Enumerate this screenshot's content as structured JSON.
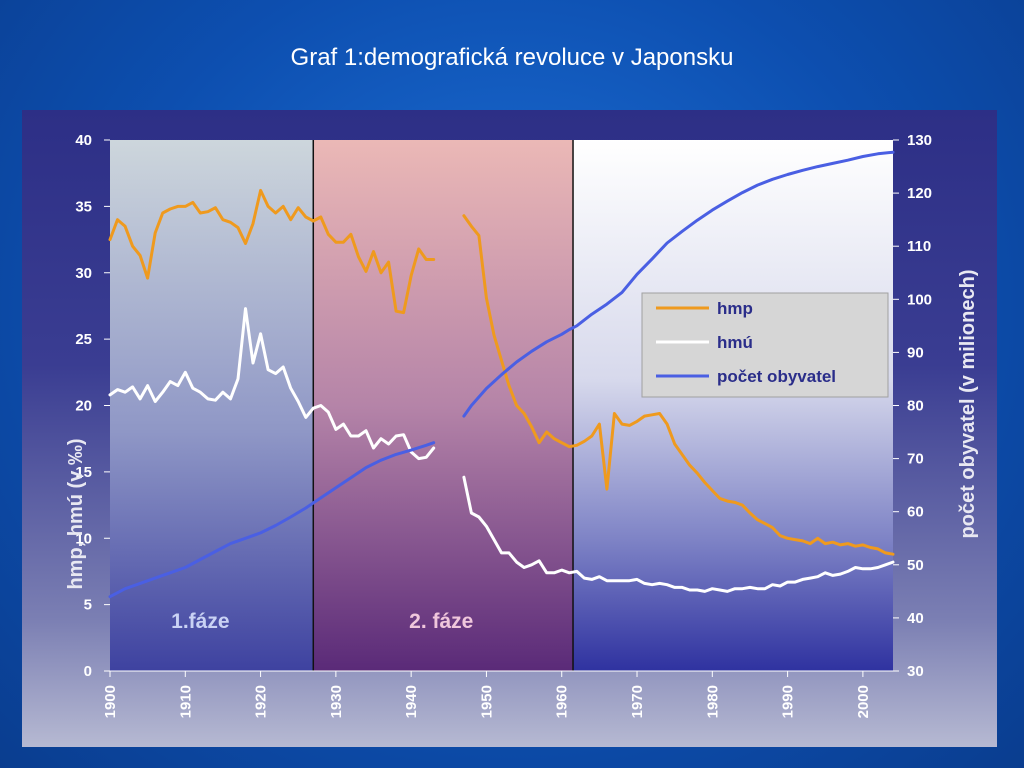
{
  "slide": {
    "title": "Graf 1:demografická revoluce v Japonsku"
  },
  "colors": {
    "hmp": "#ef9a1e",
    "hmu": "#ffffff",
    "population": "#4a5fe3",
    "phase1_bg": "#c9d3dc",
    "phase2_bg": "#e6b4b6",
    "phase3_bg": "#ffffff"
  },
  "chart_data": {
    "type": "line",
    "title": "",
    "xlabel": "",
    "ylabel": "hmp, hmú (v ‰)",
    "ylabel_right": "počet obyvatel (v milionech)",
    "xlim": [
      1900,
      2004
    ],
    "ylim": [
      0,
      40
    ],
    "ylim_right": [
      30,
      130
    ],
    "x_ticks": [
      "1900",
      "1910",
      "1920",
      "1930",
      "1940",
      "1950",
      "1960",
      "1970",
      "1980",
      "1990",
      "2000"
    ],
    "y_ticks": [
      "0",
      "5",
      "10",
      "15",
      "20",
      "25",
      "30",
      "35",
      "40"
    ],
    "y_ticks_right": [
      "30",
      "40",
      "50",
      "60",
      "70",
      "80",
      "90",
      "100",
      "110",
      "120",
      "130"
    ],
    "grid": false,
    "legend_position": "right",
    "phase_dividers": [
      1927,
      1961.5
    ],
    "phases": [
      {
        "label": "1.fáze",
        "x_center": 1912
      },
      {
        "label": "2. fáze",
        "x_center": 1944
      }
    ],
    "series": [
      {
        "name": "hmp",
        "axis": "left",
        "segments": [
          {
            "x": [
              1900,
              1901,
              1902,
              1903,
              1904,
              1905,
              1906,
              1907,
              1908,
              1909,
              1910,
              1911,
              1912,
              1913,
              1914,
              1915,
              1916,
              1917,
              1918,
              1919,
              1920,
              1921,
              1922,
              1923,
              1924,
              1925,
              1926,
              1927,
              1928,
              1929,
              1930,
              1931,
              1932,
              1933,
              1934,
              1935,
              1936,
              1937,
              1938,
              1939,
              1940,
              1941,
              1942,
              1943
            ],
            "y": [
              32.5,
              34,
              33.5,
              32,
              31.3,
              29.6,
              33,
              34.5,
              34.8,
              35,
              35,
              35.3,
              34.5,
              34.6,
              34.9,
              34,
              33.8,
              33.4,
              32.2,
              33.7,
              36.2,
              35,
              34.5,
              35,
              34,
              34.9,
              34.2,
              33.9,
              34.2,
              32.9,
              32.3,
              32.3,
              32.9,
              31.2,
              30.1,
              31.6,
              30,
              30.8,
              27.1,
              27,
              29.8,
              31.8,
              31.0,
              31.0
            ]
          },
          {
            "x": [
              1947,
              1948,
              1949,
              1950,
              1951,
              1952,
              1953,
              1954,
              1955,
              1956,
              1957,
              1958,
              1959,
              1960,
              1961,
              1962,
              1963,
              1964,
              1965,
              1966,
              1967,
              1968,
              1969,
              1970,
              1971,
              1972,
              1973,
              1974,
              1975,
              1976,
              1977,
              1978,
              1979,
              1980,
              1981,
              1982,
              1983,
              1984,
              1985,
              1986,
              1987,
              1988,
              1989,
              1990,
              1991,
              1992,
              1993,
              1994,
              1995,
              1996,
              1997,
              1998,
              1999,
              2000,
              2001,
              2002,
              2003,
              2004
            ],
            "y": [
              34.3,
              33.5,
              32.8,
              28.1,
              25.3,
              23.4,
              21.5,
              20,
              19.4,
              18.4,
              17.2,
              18,
              17.5,
              17.2,
              16.9,
              17.0,
              17.3,
              17.7,
              18.6,
              13.7,
              19.4,
              18.6,
              18.5,
              18.8,
              19.2,
              19.3,
              19.4,
              18.6,
              17.1,
              16.3,
              15.5,
              14.9,
              14.2,
              13.6,
              13.0,
              12.8,
              12.7,
              12.5,
              11.9,
              11.4,
              11.1,
              10.8,
              10.2,
              10.0,
              9.9,
              9.8,
              9.6,
              10.0,
              9.6,
              9.7,
              9.5,
              9.6,
              9.4,
              9.5,
              9.3,
              9.2,
              8.9,
              8.8
            ]
          }
        ]
      },
      {
        "name": "hmú",
        "axis": "left",
        "segments": [
          {
            "x": [
              1900,
              1901,
              1902,
              1903,
              1904,
              1905,
              1906,
              1907,
              1908,
              1909,
              1910,
              1911,
              1912,
              1913,
              1914,
              1915,
              1916,
              1917,
              1918,
              1919,
              1920,
              1921,
              1922,
              1923,
              1924,
              1925,
              1926,
              1927,
              1928,
              1929,
              1930,
              1931,
              1932,
              1933,
              1934,
              1935,
              1936,
              1937,
              1938,
              1939,
              1940,
              1941,
              1942,
              1943
            ],
            "y": [
              20.8,
              21.2,
              21,
              21.4,
              20.5,
              21.5,
              20.3,
              21,
              21.8,
              21.5,
              22.5,
              21.3,
              21,
              20.5,
              20.4,
              21,
              20.5,
              22,
              27.3,
              23.2,
              25.4,
              22.7,
              22.4,
              22.9,
              21.3,
              20.3,
              19.1,
              19.8,
              20,
              19.5,
              18.2,
              18.6,
              17.7,
              17.7,
              18.1,
              16.8,
              17.5,
              17.1,
              17.7,
              17.8,
              16.5,
              16,
              16.1,
              16.8
            ]
          },
          {
            "x": [
              1947,
              1948,
              1949,
              1950,
              1951,
              1952,
              1953,
              1954,
              1955,
              1956,
              1957,
              1958,
              1959,
              1960,
              1961,
              1962,
              1963,
              1964,
              1965,
              1966,
              1967,
              1968,
              1969,
              1970,
              1971,
              1972,
              1973,
              1974,
              1975,
              1976,
              1977,
              1978,
              1979,
              1980,
              1981,
              1982,
              1983,
              1984,
              1985,
              1986,
              1987,
              1988,
              1989,
              1990,
              1991,
              1992,
              1993,
              1994,
              1995,
              1996,
              1997,
              1998,
              1999,
              2000,
              2001,
              2002,
              2003,
              2004
            ],
            "y": [
              14.6,
              11.9,
              11.6,
              10.9,
              9.9,
              8.9,
              8.9,
              8.2,
              7.8,
              8.0,
              8.3,
              7.4,
              7.4,
              7.6,
              7.4,
              7.5,
              7.0,
              6.9,
              7.1,
              6.8,
              6.8,
              6.8,
              6.8,
              6.9,
              6.6,
              6.5,
              6.6,
              6.5,
              6.3,
              6.3,
              6.1,
              6.1,
              6.0,
              6.2,
              6.1,
              6.0,
              6.2,
              6.2,
              6.3,
              6.2,
              6.2,
              6.5,
              6.4,
              6.7,
              6.7,
              6.9,
              7.0,
              7.1,
              7.4,
              7.2,
              7.3,
              7.5,
              7.8,
              7.7,
              7.7,
              7.8,
              8.0,
              8.2
            ]
          }
        ]
      },
      {
        "name": "počet obyvatel",
        "axis": "right",
        "segments": [
          {
            "x": [
              1900,
              1902,
              1904,
              1906,
              1908,
              1910,
              1912,
              1914,
              1916,
              1918,
              1920,
              1922,
              1924,
              1926,
              1928,
              1930,
              1932,
              1934,
              1936,
              1938,
              1940,
              1942,
              1943
            ],
            "y": [
              44,
              45.5,
              46.5,
              47.5,
              48.5,
              49.5,
              51,
              52.5,
              54,
              55,
              56,
              57.4,
              59,
              60.7,
              62.6,
              64.5,
              66.4,
              68.3,
              69.7,
              70.8,
              71.6,
              72.5,
              73
            ]
          },
          {
            "x": [
              1947,
              1948,
              1950,
              1952,
              1954,
              1956,
              1958,
              1960,
              1961,
              1962,
              1964,
              1966,
              1968,
              1970,
              1972,
              1974,
              1976,
              1978,
              1980,
              1982,
              1984,
              1986,
              1988,
              1990,
              1992,
              1994,
              1996,
              1998,
              2000,
              2002,
              2004
            ],
            "y": [
              78,
              80,
              83.2,
              85.8,
              88.2,
              90.2,
              92,
              93.4,
              94.3,
              95,
              97.2,
              99.1,
              101.3,
              104.7,
              107.6,
              110.6,
              112.8,
              114.9,
              116.8,
              118.5,
              120.1,
              121.5,
              122.6,
              123.5,
              124.3,
              125,
              125.6,
              126.2,
              126.9,
              127.4,
              127.7
            ]
          }
        ]
      }
    ]
  }
}
